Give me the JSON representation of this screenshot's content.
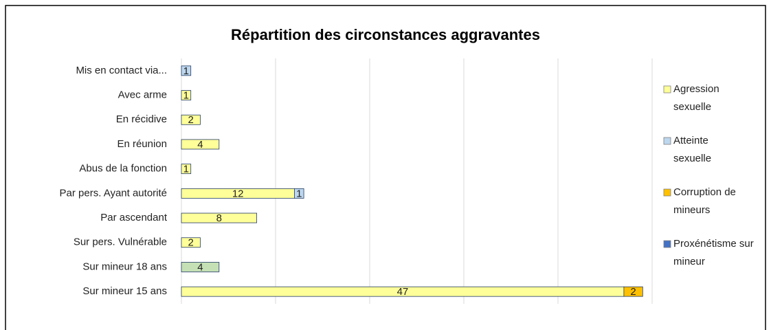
{
  "chart_data": {
    "type": "stacked-barh",
    "title": "Répartition des circonstances aggravantes",
    "categories": [
      "Mis en contact via...",
      "Avec arme",
      "En récidive",
      "En réunion",
      "Abus de la fonction",
      "Par pers. Ayant autorité",
      "Par ascendant",
      "Sur pers. Vulnérable",
      "Sur mineur 18 ans",
      "Sur mineur 15 ans"
    ],
    "series": [
      {
        "name": "Agression sexuelle",
        "color": "#ffff99",
        "values": [
          null,
          1,
          2,
          4,
          1,
          12,
          8,
          2,
          null,
          47
        ]
      },
      {
        "name": "Atteinte sexuelle",
        "color": "#bdd7ee",
        "values": [
          1,
          null,
          null,
          null,
          null,
          1,
          null,
          null,
          4,
          null
        ],
        "point_colors": [
          null,
          null,
          null,
          null,
          null,
          null,
          null,
          null,
          "#c5e0b4",
          null
        ]
      },
      {
        "name": "Corruption de mineurs",
        "color": "#ffc000",
        "values": [
          null,
          null,
          null,
          null,
          null,
          null,
          null,
          null,
          null,
          2
        ]
      },
      {
        "name": "Proxénétisme sur mineur",
        "color": "#4472c4",
        "values": [
          null,
          null,
          null,
          null,
          null,
          null,
          null,
          null,
          null,
          null
        ]
      }
    ],
    "xlim": [
      0,
      50
    ],
    "xticks": [
      0,
      10,
      20,
      30,
      40,
      50
    ],
    "grid": true,
    "legend": "right"
  }
}
